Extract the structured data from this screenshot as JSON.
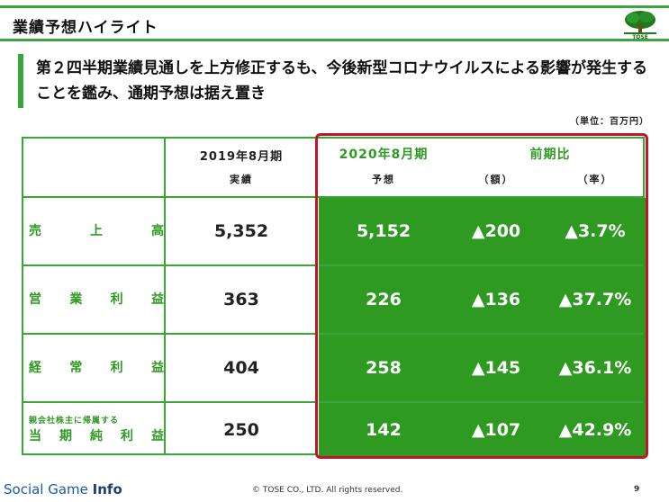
{
  "header": {
    "title": "業績予想ハイライト",
    "logo_text": "TOSE"
  },
  "headline": "第２四半期業績見通しを上方修正するも、今後新型コロナウイルスによる影響が発生することを鑑み、通期予想は据え置き",
  "unit": "（単位：百万円）",
  "table": {
    "col_2019": "2019年8月期",
    "col_2019_sub": "実績",
    "col_2020": "2020年8月期",
    "col_2020_sub": "予想",
    "col_compare": "前期比",
    "col_amount": "（額）",
    "col_rate": "（率）",
    "rows": [
      {
        "label": [
          "売",
          "上",
          "高"
        ],
        "v2019": "5,352",
        "v2020": "5,152",
        "amount": "▲200",
        "rate": "▲3.7%"
      },
      {
        "label": [
          "営",
          "業",
          "利",
          "益"
        ],
        "v2019": "363",
        "v2020": "226",
        "amount": "▲136",
        "rate": "▲37.7%"
      },
      {
        "label": [
          "経",
          "常",
          "利",
          "益"
        ],
        "v2019": "404",
        "v2020": "258",
        "amount": "▲145",
        "rate": "▲36.1%"
      },
      {
        "label_small": "親会社株主に帰属する",
        "label": [
          "当",
          "期",
          "純",
          "利",
          "益"
        ],
        "v2019": "250",
        "v2020": "142",
        "amount": "▲107",
        "rate": "▲42.9%"
      }
    ]
  },
  "footer": {
    "brand_plain": "Social Game ",
    "brand_bold": "Info",
    "copyright": "© TOSE CO., LTD. All rights reserved.",
    "page": "9"
  },
  "colors": {
    "accent_green": "#3aa63a",
    "fill_green": "#2e9a22",
    "highlight_red": "#c0162a"
  }
}
